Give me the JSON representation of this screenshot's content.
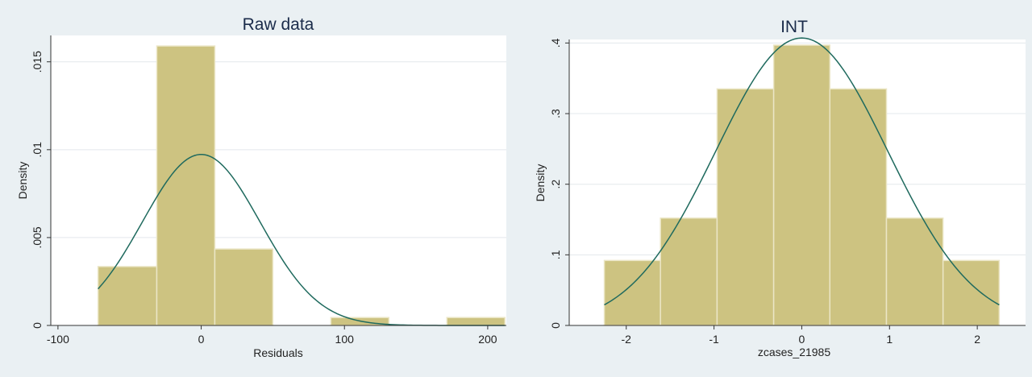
{
  "chart_data": [
    {
      "type": "bar",
      "title": "Raw data",
      "xlabel": "Residuals",
      "ylabel": "Density",
      "xlim": [
        -105,
        213
      ],
      "ylim": [
        0,
        0.0165
      ],
      "xticks": [
        -100,
        0,
        100,
        200
      ],
      "xtick_labels": [
        "-100",
        "0",
        "100",
        "200"
      ],
      "yticks": [
        0,
        0.005,
        0.01,
        0.015
      ],
      "ytick_labels": [
        "0",
        ".005",
        ".01",
        ".015"
      ],
      "bins": [
        {
          "x0": -72,
          "x1": -31,
          "value": 0.00335
        },
        {
          "x0": -31,
          "x1": 9.5,
          "value": 0.0159
        },
        {
          "x0": 9.5,
          "x1": 50,
          "value": 0.00435
        },
        {
          "x0": 90.5,
          "x1": 131,
          "value": 0.00045
        },
        {
          "x0": 171.5,
          "x1": 212,
          "value": 0.00045
        }
      ],
      "normal_curve": {
        "mean": 0,
        "sd": 41,
        "x_range": [
          -72,
          212
        ]
      },
      "grid": true,
      "legend": "none"
    },
    {
      "type": "bar",
      "title": "INT",
      "xlabel": "zcases_21985",
      "ylabel": "Density",
      "xlim": [
        -2.65,
        2.55
      ],
      "ylim": [
        0,
        0.405
      ],
      "xticks": [
        -2,
        -1,
        0,
        1,
        2
      ],
      "xtick_labels": [
        "-2",
        "-1",
        "0",
        "1",
        "2"
      ],
      "yticks": [
        0,
        0.1,
        0.2,
        0.3,
        0.4
      ],
      "ytick_labels": [
        "0",
        ".1",
        ".2",
        ".3",
        ".4"
      ],
      "bins": [
        {
          "x0": -2.25,
          "x1": -1.61,
          "value": 0.092
        },
        {
          "x0": -1.61,
          "x1": -0.965,
          "value": 0.152
        },
        {
          "x0": -0.965,
          "x1": -0.32,
          "value": 0.335
        },
        {
          "x0": -0.32,
          "x1": 0.32,
          "value": 0.397
        },
        {
          "x0": 0.32,
          "x1": 0.965,
          "value": 0.335
        },
        {
          "x0": 0.965,
          "x1": 1.61,
          "value": 0.152
        },
        {
          "x0": 1.61,
          "x1": 2.25,
          "value": 0.092
        }
      ],
      "normal_curve": {
        "mean": 0,
        "sd": 0.98,
        "x_range": [
          -2.25,
          2.25
        ]
      },
      "grid": true,
      "legend": "none"
    }
  ]
}
